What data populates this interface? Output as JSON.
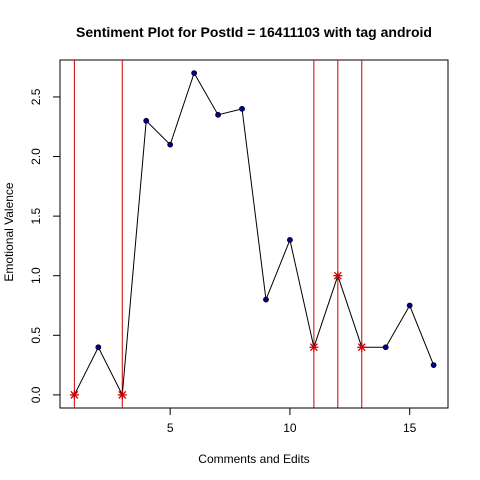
{
  "chart_data": {
    "type": "line",
    "title": "Sentiment Plot for PostId =  16411103  with tag  android",
    "xlabel": "Comments and Edits",
    "ylabel": "Emotional Valence",
    "xlim": [
      0.4,
      16.6
    ],
    "ylim": [
      -0.11,
      2.81
    ],
    "x_ticks": [
      5,
      10,
      15
    ],
    "x_tick_labels": [
      "5",
      "10",
      "15"
    ],
    "y_ticks": [
      0.0,
      0.5,
      1.0,
      1.5,
      2.0,
      2.5
    ],
    "y_tick_labels": [
      "0.0",
      "0.5",
      "1.0",
      "1.5",
      "2.0",
      "2.5"
    ],
    "grid": false,
    "x": [
      1,
      2,
      3,
      4,
      5,
      6,
      7,
      8,
      9,
      10,
      11,
      12,
      13,
      14,
      15,
      16
    ],
    "values": [
      0.0,
      0.4,
      0.0,
      2.3,
      2.1,
      2.7,
      2.35,
      2.4,
      0.8,
      1.3,
      0.4,
      1.0,
      0.4,
      0.4,
      0.75,
      0.25
    ],
    "edit_points_x": [
      1,
      3,
      11,
      12,
      13
    ],
    "vertical_lines_x": [
      1,
      3,
      11,
      12,
      13
    ],
    "colors": {
      "line": "#000000",
      "point": "#00008B",
      "edit_marker": "#CC0000",
      "vertical_line": "#CC0000"
    }
  }
}
